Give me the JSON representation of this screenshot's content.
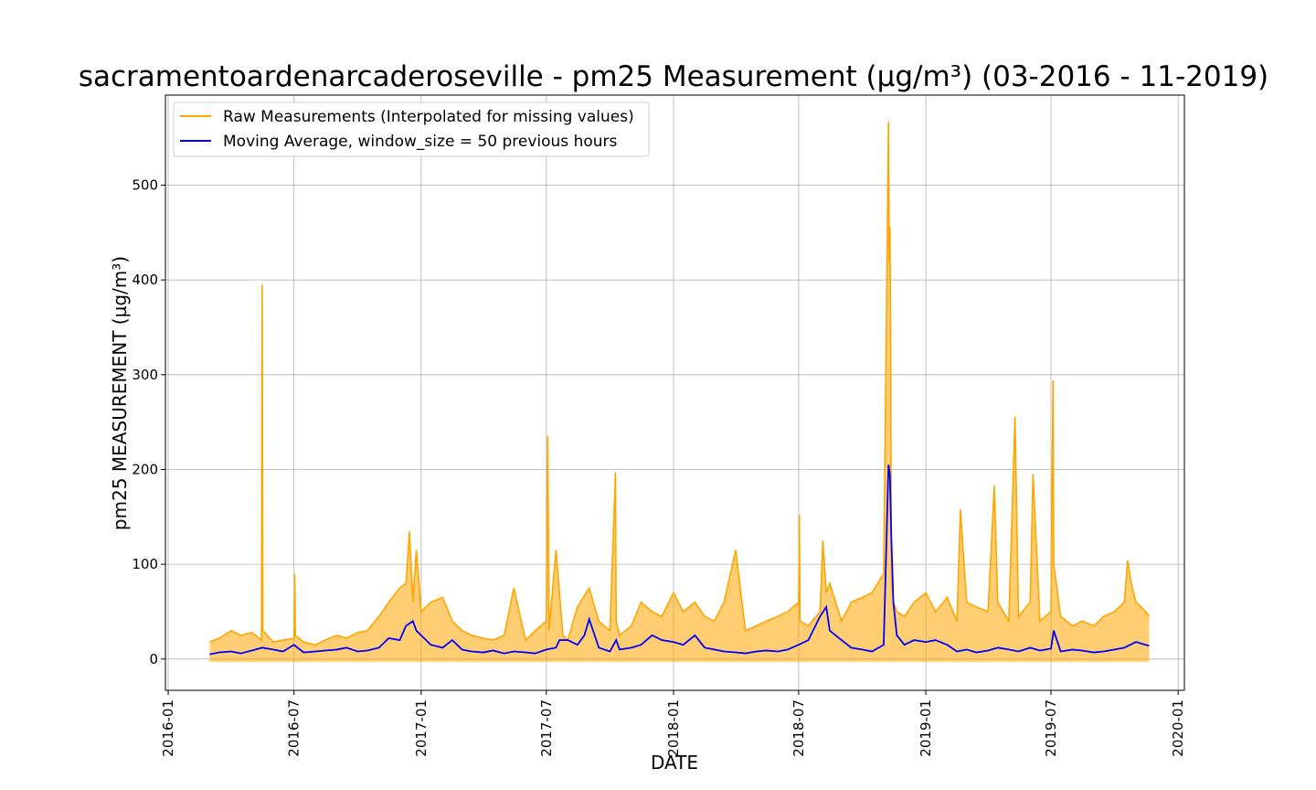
{
  "chart_data": {
    "type": "line",
    "title": "sacramentoardenarcaderoseville - pm25 Measurement (µg/m³) (03-2016 - 11-2019)",
    "xlabel": "DATE",
    "ylabel": "pm25 MEASUREMENT (µg/m³)",
    "xlim": [
      "2015-12-28",
      "2020-01-10"
    ],
    "ylim": [
      -33,
      595
    ],
    "x_ticks": [
      "2016-01",
      "2016-07",
      "2017-01",
      "2017-07",
      "2018-01",
      "2018-07",
      "2019-01",
      "2019-07",
      "2020-01"
    ],
    "y_ticks": [
      0,
      100,
      200,
      300,
      400,
      500
    ],
    "grid": true,
    "legend_position": "top-left",
    "series": [
      {
        "name": "Raw Measurements (Interpolated for missing values)",
        "color": "#ffa500",
        "x": [
          "2016-03-01",
          "2016-03-15",
          "2016-04-01",
          "2016-04-15",
          "2016-05-01",
          "2016-05-15",
          "2016-05-16",
          "2016-05-17",
          "2016-06-01",
          "2016-06-15",
          "2016-07-01",
          "2016-07-02",
          "2016-07-03",
          "2016-07-15",
          "2016-08-01",
          "2016-08-15",
          "2016-09-01",
          "2016-09-15",
          "2016-10-01",
          "2016-10-15",
          "2016-11-01",
          "2016-11-15",
          "2016-12-01",
          "2016-12-10",
          "2016-12-15",
          "2016-12-20",
          "2016-12-25",
          "2017-01-01",
          "2017-01-15",
          "2017-02-01",
          "2017-02-15",
          "2017-03-01",
          "2017-03-15",
          "2017-04-01",
          "2017-04-15",
          "2017-05-01",
          "2017-05-15",
          "2017-06-01",
          "2017-06-15",
          "2017-07-01",
          "2017-07-03",
          "2017-07-05",
          "2017-07-15",
          "2017-07-25",
          "2017-08-01",
          "2017-08-15",
          "2017-09-01",
          "2017-09-15",
          "2017-10-01",
          "2017-10-09",
          "2017-10-10",
          "2017-10-15",
          "2017-11-01",
          "2017-11-15",
          "2017-12-01",
          "2017-12-15",
          "2018-01-01",
          "2018-01-15",
          "2018-02-01",
          "2018-02-15",
          "2018-03-01",
          "2018-03-15",
          "2018-04-01",
          "2018-04-15",
          "2018-05-01",
          "2018-05-15",
          "2018-06-01",
          "2018-06-15",
          "2018-07-01",
          "2018-07-02",
          "2018-07-03",
          "2018-07-15",
          "2018-08-01",
          "2018-08-05",
          "2018-08-10",
          "2018-08-15",
          "2018-09-01",
          "2018-09-15",
          "2018-10-01",
          "2018-10-15",
          "2018-11-01",
          "2018-11-08",
          "2018-11-09",
          "2018-11-10",
          "2018-11-11",
          "2018-11-12",
          "2018-11-13",
          "2018-11-15",
          "2018-11-20",
          "2018-12-01",
          "2018-12-15",
          "2019-01-01",
          "2019-01-15",
          "2019-02-01",
          "2019-02-15",
          "2019-02-20",
          "2019-03-01",
          "2019-03-15",
          "2019-04-01",
          "2019-04-10",
          "2019-04-15",
          "2019-05-01",
          "2019-05-10",
          "2019-05-15",
          "2019-06-01",
          "2019-06-05",
          "2019-06-15",
          "2019-07-01",
          "2019-07-04",
          "2019-07-05",
          "2019-07-15",
          "2019-08-01",
          "2019-08-15",
          "2019-09-01",
          "2019-09-15",
          "2019-10-01",
          "2019-10-15",
          "2019-10-20",
          "2019-10-25",
          "2019-11-01",
          "2019-11-15",
          "2019-11-20"
        ],
        "values": [
          18,
          22,
          30,
          25,
          28,
          20,
          395,
          30,
          18,
          20,
          22,
          90,
          25,
          18,
          15,
          20,
          25,
          22,
          28,
          30,
          45,
          60,
          75,
          80,
          135,
          60,
          115,
          50,
          60,
          65,
          40,
          30,
          25,
          22,
          20,
          25,
          75,
          20,
          30,
          40,
          235,
          30,
          115,
          25,
          20,
          55,
          75,
          40,
          30,
          197,
          40,
          25,
          35,
          60,
          50,
          45,
          70,
          50,
          60,
          45,
          40,
          60,
          115,
          30,
          35,
          40,
          45,
          50,
          60,
          152,
          40,
          35,
          50,
          125,
          70,
          80,
          40,
          60,
          65,
          70,
          90,
          567,
          420,
          456,
          345,
          120,
          80,
          60,
          50,
          45,
          60,
          70,
          50,
          65,
          40,
          158,
          60,
          55,
          50,
          183,
          60,
          40,
          256,
          45,
          60,
          195,
          40,
          50,
          294,
          100,
          45,
          35,
          40,
          35,
          45,
          50,
          60,
          104,
          80,
          60,
          50,
          45
        ],
        "band_low": -3
      },
      {
        "name": "Moving Average, window_size = 50 previous hours",
        "color": "#0000ff",
        "x": [
          "2016-03-01",
          "2016-03-15",
          "2016-04-01",
          "2016-04-15",
          "2016-05-01",
          "2016-05-16",
          "2016-06-01",
          "2016-06-15",
          "2016-07-01",
          "2016-07-15",
          "2016-08-01",
          "2016-08-15",
          "2016-09-01",
          "2016-09-15",
          "2016-10-01",
          "2016-10-15",
          "2016-11-01",
          "2016-11-15",
          "2016-12-01",
          "2016-12-10",
          "2016-12-20",
          "2016-12-25",
          "2017-01-01",
          "2017-01-15",
          "2017-02-01",
          "2017-02-15",
          "2017-03-01",
          "2017-03-15",
          "2017-04-01",
          "2017-04-15",
          "2017-05-01",
          "2017-05-15",
          "2017-06-01",
          "2017-06-15",
          "2017-07-01",
          "2017-07-15",
          "2017-07-20",
          "2017-08-01",
          "2017-08-15",
          "2017-08-25",
          "2017-09-01",
          "2017-09-15",
          "2017-10-01",
          "2017-10-10",
          "2017-10-15",
          "2017-11-01",
          "2017-11-15",
          "2017-12-01",
          "2017-12-15",
          "2018-01-01",
          "2018-01-15",
          "2018-02-01",
          "2018-02-15",
          "2018-03-01",
          "2018-03-15",
          "2018-04-01",
          "2018-04-15",
          "2018-05-01",
          "2018-05-15",
          "2018-06-01",
          "2018-06-15",
          "2018-07-01",
          "2018-07-15",
          "2018-08-01",
          "2018-08-10",
          "2018-08-15",
          "2018-09-01",
          "2018-09-15",
          "2018-10-01",
          "2018-10-15",
          "2018-11-01",
          "2018-11-08",
          "2018-11-10",
          "2018-11-12",
          "2018-11-15",
          "2018-11-20",
          "2018-12-01",
          "2018-12-15",
          "2019-01-01",
          "2019-01-15",
          "2019-02-01",
          "2019-02-15",
          "2019-03-01",
          "2019-03-15",
          "2019-04-01",
          "2019-04-15",
          "2019-05-01",
          "2019-05-15",
          "2019-06-01",
          "2019-06-15",
          "2019-07-01",
          "2019-07-05",
          "2019-07-15",
          "2019-08-01",
          "2019-08-15",
          "2019-09-01",
          "2019-09-15",
          "2019-10-01",
          "2019-10-15",
          "2019-11-01",
          "2019-11-15",
          "2019-11-20"
        ],
        "values": [
          5,
          7,
          8,
          6,
          9,
          12,
          10,
          8,
          15,
          7,
          8,
          9,
          10,
          12,
          8,
          9,
          12,
          22,
          20,
          35,
          40,
          30,
          25,
          15,
          12,
          20,
          10,
          8,
          7,
          9,
          6,
          8,
          7,
          6,
          10,
          12,
          20,
          20,
          15,
          25,
          42,
          12,
          8,
          20,
          10,
          12,
          15,
          25,
          20,
          18,
          15,
          25,
          12,
          10,
          8,
          7,
          6,
          8,
          9,
          8,
          10,
          15,
          20,
          45,
          55,
          30,
          20,
          12,
          10,
          8,
          15,
          205,
          195,
          130,
          60,
          25,
          15,
          20,
          18,
          20,
          15,
          8,
          10,
          7,
          9,
          12,
          10,
          8,
          12,
          9,
          11,
          30,
          8,
          10,
          9,
          7,
          8,
          10,
          12,
          18,
          15,
          14
        ]
      }
    ]
  }
}
